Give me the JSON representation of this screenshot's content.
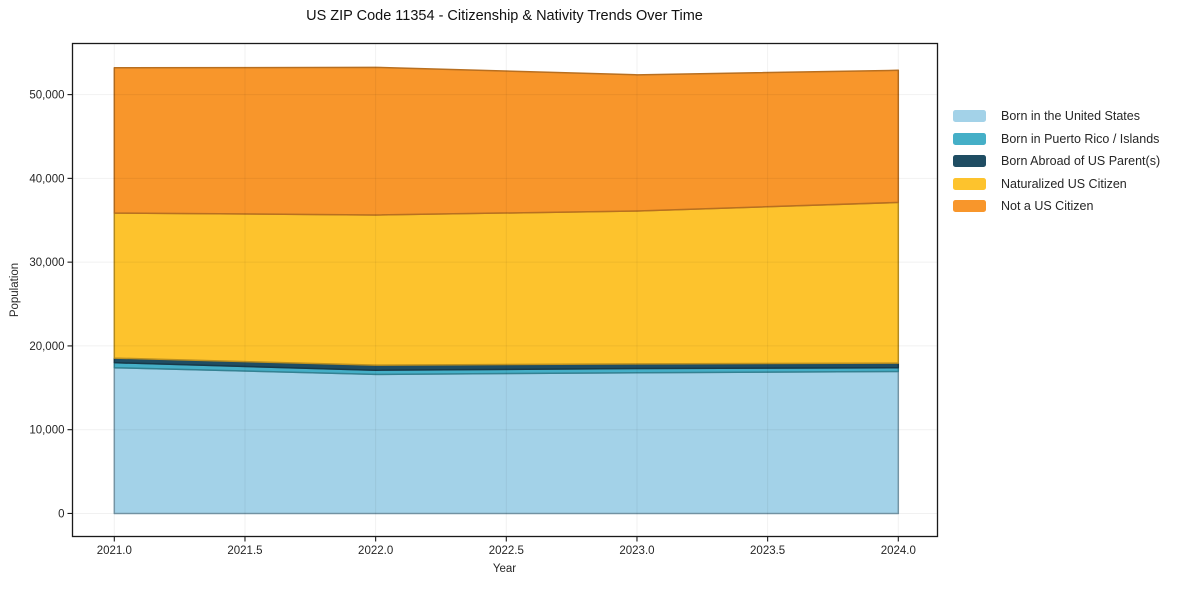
{
  "chart_data": {
    "type": "area",
    "stacked": true,
    "title": "US ZIP Code 11354 - Citizenship & Nativity Trends Over Time",
    "xlabel": "Year",
    "ylabel": "Population",
    "x": [
      2021,
      2022,
      2023,
      2024
    ],
    "series": [
      {
        "name": "Born in the United States",
        "color": "#A3D2E8",
        "values": [
          17400,
          16600,
          16800,
          16950
        ]
      },
      {
        "name": "Born in Puerto Rico / Islands",
        "color": "#45AFC7",
        "values": [
          600,
          500,
          500,
          450
        ]
      },
      {
        "name": "Born Abroad of US Parent(s)",
        "color": "#1F4D63",
        "values": [
          550,
          600,
          550,
          550
        ]
      },
      {
        "name": "Naturalized US Citizen",
        "color": "#FDC32D",
        "values": [
          17320,
          17930,
          18260,
          19180
        ]
      },
      {
        "name": "Not a US Citizen",
        "color": "#F8962B",
        "values": [
          17330,
          17620,
          16250,
          15770
        ]
      }
    ],
    "totals": [
      53200,
      53250,
      52360,
      52900
    ],
    "x_tick_labels": [
      "2021.0",
      "2021.5",
      "2022.0",
      "2022.5",
      "2023.0",
      "2023.5",
      "2024.0"
    ],
    "x_tick_values": [
      2021,
      2021.5,
      2022,
      2022.5,
      2023,
      2023.5,
      2024
    ],
    "y_tick_labels": [
      "0",
      "10,000",
      "20,000",
      "30,000",
      "40,000",
      "50,000"
    ],
    "y_tick_values": [
      0,
      10000,
      20000,
      30000,
      40000,
      50000
    ],
    "xlim": [
      2020.84,
      2024.15
    ],
    "ylim": [
      -2750,
      56100
    ],
    "grid": true,
    "legend_position": "right-outside"
  },
  "colors": {
    "spine": "#1a1a1a",
    "tick_label": "#262626",
    "grid_alpha_stroke": "rgba(0,0,0,0.055)"
  }
}
